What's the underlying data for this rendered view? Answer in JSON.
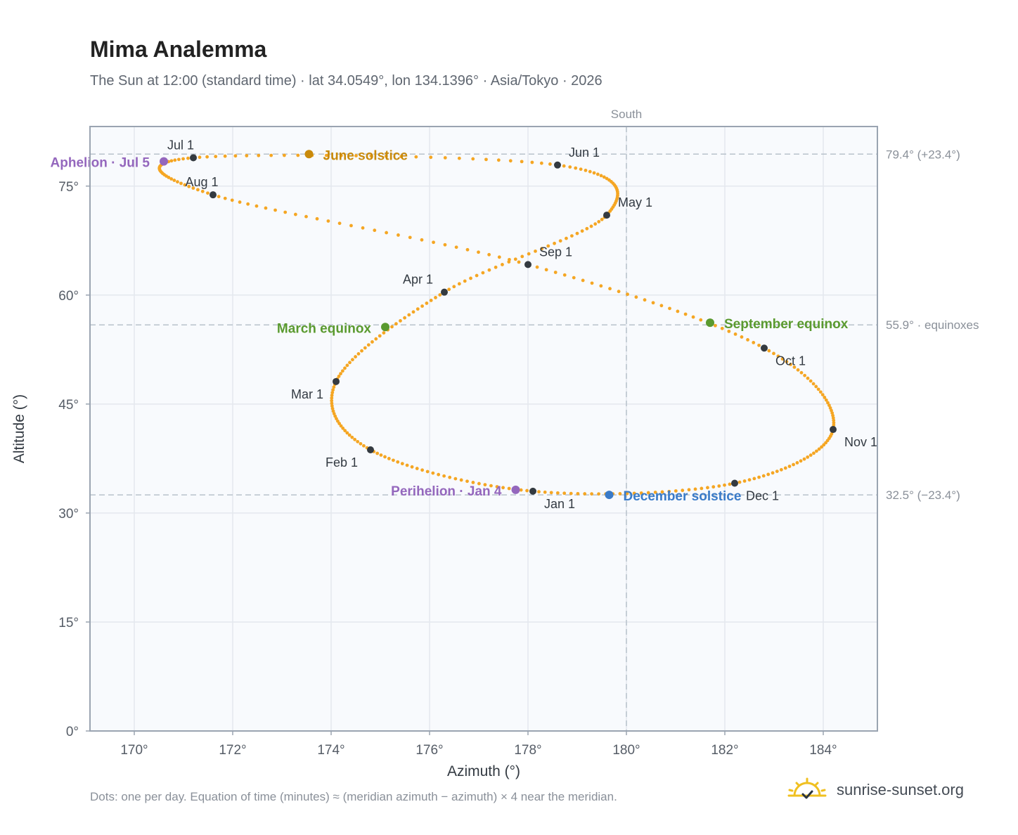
{
  "title": "Mima Analemma",
  "subtitle": "The Sun at 12:00 (standard time) · lat 34.0549°, lon 134.1396° · Asia/Tokyo · 2026",
  "footnote": "Dots: one per day. Equation of time (minutes) ≈ (meridian azimuth − azimuth) × 4 near the meridian.",
  "brand": {
    "name": "sunrise-sunset.org"
  },
  "colors": {
    "curve": "#f5a623",
    "month_dot": "#343a40",
    "solstice_june": "#c98a0b",
    "equinox": "#5a9a2f",
    "solstice_december": "#3a7bc8",
    "apsis": "#9467bd",
    "grid": "#e4e8ee",
    "plot_bg": "#f8fafd",
    "refline": "#b8c2cc",
    "brand_sun": "#f0c020"
  },
  "chart_data": {
    "type": "scatter",
    "xlabel": "Azimuth (°)",
    "ylabel": "Altitude (°)",
    "xlim": [
      169.1,
      185.1
    ],
    "ylim": [
      0,
      83.2
    ],
    "xticks": [
      170,
      172,
      174,
      176,
      178,
      180,
      182,
      184
    ],
    "xtick_labels": [
      "170°",
      "172°",
      "174°",
      "176°",
      "178°",
      "180°",
      "182°",
      "184°"
    ],
    "yticks": [
      0,
      15,
      30,
      45,
      60,
      75
    ],
    "ytick_labels": [
      "0°",
      "15°",
      "30°",
      "45°",
      "60°",
      "75°"
    ],
    "grid": true,
    "meridian": {
      "azimuth": 180,
      "label": "South"
    },
    "reference_lines": [
      {
        "altitude": 79.4,
        "label": "79.4° (+23.4°)"
      },
      {
        "altitude": 55.9,
        "label": "55.9° · equinoxes"
      },
      {
        "altitude": 32.5,
        "label": "32.5° (−23.4°)"
      }
    ],
    "month_markers": [
      {
        "label": "Jan 1",
        "azimuth": 178.1,
        "altitude": 33.0
      },
      {
        "label": "Feb 1",
        "azimuth": 174.8,
        "altitude": 38.7
      },
      {
        "label": "Mar 1",
        "azimuth": 174.1,
        "altitude": 48.1
      },
      {
        "label": "Apr 1",
        "azimuth": 176.3,
        "altitude": 60.4
      },
      {
        "label": "May 1",
        "azimuth": 179.6,
        "altitude": 71.0
      },
      {
        "label": "Jun 1",
        "azimuth": 178.6,
        "altitude": 77.9
      },
      {
        "label": "Jul 1",
        "azimuth": 171.2,
        "altitude": 78.9
      },
      {
        "label": "Aug 1",
        "azimuth": 171.6,
        "altitude": 73.8
      },
      {
        "label": "Sep 1",
        "azimuth": 178.0,
        "altitude": 64.2
      },
      {
        "label": "Oct 1",
        "azimuth": 182.8,
        "altitude": 52.7
      },
      {
        "label": "Nov 1",
        "azimuth": 184.2,
        "altitude": 41.5
      },
      {
        "label": "Dec 1",
        "azimuth": 182.2,
        "altitude": 34.1
      }
    ],
    "events": [
      {
        "label": "June solstice",
        "azimuth": 173.55,
        "altitude": 79.4,
        "color_key": "solstice_june"
      },
      {
        "label": "March equinox",
        "azimuth": 175.1,
        "altitude": 55.6,
        "color_key": "equinox"
      },
      {
        "label": "September equinox",
        "azimuth": 181.7,
        "altitude": 56.2,
        "color_key": "equinox"
      },
      {
        "label": "December solstice",
        "azimuth": 179.65,
        "altitude": 32.5,
        "color_key": "solstice_december"
      },
      {
        "label": "Aphelion · Jul 5",
        "azimuth": 170.6,
        "altitude": 78.4,
        "color_key": "apsis"
      },
      {
        "label": "Perihelion · Jan 4",
        "azimuth": 177.75,
        "altitude": 33.2,
        "color_key": "apsis"
      }
    ],
    "daily_path": {
      "start": "Jan 1",
      "extremes": [
        {
          "azimuth": 174.0,
          "altitude": 45.5
        },
        {
          "azimuth": 184.2,
          "altitude": 43.0
        },
        {
          "azimuth": 180.2,
          "altitude": 74.5
        },
        {
          "azimuth": 169.95,
          "altitude": 77.0
        }
      ]
    }
  }
}
